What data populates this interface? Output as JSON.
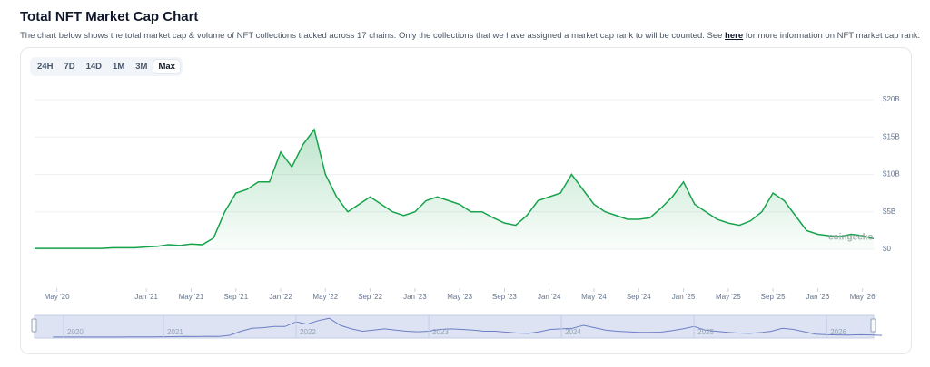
{
  "header": {
    "title": "Total NFT Market Cap Chart",
    "description_before": "The chart below shows the total market cap & volume of NFT collections tracked across 17 chains. Only the collections that we have assigned a market cap rank to will be counted. See",
    "link": "here",
    "description_after": "for more information on NFT market cap rank."
  },
  "range_buttons": [
    {
      "label": "24H"
    },
    {
      "label": "7D"
    },
    {
      "label": "14D"
    },
    {
      "label": "1M"
    },
    {
      "label": "3M"
    },
    {
      "label": "Max",
      "selected": true
    }
  ],
  "watermark": "coingecko",
  "navigator_labels": [
    "2020",
    "2021",
    "2022",
    "2023",
    "2024",
    "2025",
    "2026"
  ],
  "chart_data": {
    "type": "area",
    "color": "#16a34a",
    "navigator_color": "#6b7fc4",
    "grid": true,
    "x": [
      "2020-03",
      "2020-04",
      "2020-05",
      "2020-06",
      "2020-07",
      "2020-08",
      "2020-09",
      "2020-10",
      "2020-11",
      "2020-12",
      "2021-01",
      "2021-02",
      "2021-03",
      "2021-04",
      "2021-05",
      "2021-06",
      "2021-07",
      "2021-08",
      "2021-09",
      "2021-10",
      "2021-11",
      "2021-12",
      "2022-01",
      "2022-02",
      "2022-03",
      "2022-04",
      "2022-05",
      "2022-06",
      "2022-07",
      "2022-08",
      "2022-09",
      "2022-10",
      "2022-11",
      "2022-12",
      "2023-01",
      "2023-02",
      "2023-03",
      "2023-04",
      "2023-05",
      "2023-06",
      "2023-07",
      "2023-08",
      "2023-09",
      "2023-10",
      "2023-11",
      "2023-12",
      "2024-01",
      "2024-02",
      "2024-03",
      "2024-04",
      "2024-05",
      "2024-06",
      "2024-07",
      "2024-08",
      "2024-09",
      "2024-10",
      "2024-11",
      "2024-12",
      "2025-01",
      "2025-02",
      "2025-03",
      "2025-04",
      "2025-05",
      "2025-06",
      "2025-07",
      "2025-08",
      "2025-09",
      "2025-10",
      "2025-11",
      "2025-12",
      "2026-01",
      "2026-02",
      "2026-03",
      "2026-04",
      "2026-05",
      "2026-06"
    ],
    "values": [
      0.1,
      0.1,
      0.1,
      0.1,
      0.1,
      0.1,
      0.1,
      0.2,
      0.2,
      0.2,
      0.3,
      0.4,
      0.6,
      0.5,
      0.7,
      0.6,
      1.5,
      5,
      7.5,
      8,
      9,
      9,
      13,
      11,
      14,
      16,
      10,
      7,
      5,
      6,
      7,
      6,
      5,
      4.5,
      5,
      6.5,
      7,
      6.5,
      6,
      5,
      5,
      4.2,
      3.5,
      3.2,
      4.5,
      6.5,
      7,
      7.5,
      10,
      8,
      6,
      5,
      4.5,
      4,
      4,
      4.2,
      5.5,
      7,
      9,
      6,
      5,
      4,
      3.5,
      3.2,
      3.8,
      5,
      7.5,
      6.5,
      4.5,
      2.5,
      2,
      1.8,
      1.7,
      2,
      1.8,
      1.4
    ],
    "xlim": [
      "2020-03",
      "2026-06"
    ],
    "xticks": [
      {
        "value": "2020-05",
        "label": "May '20"
      },
      {
        "value": "2021-01",
        "label": "Jan '21"
      },
      {
        "value": "2021-05",
        "label": "May '21"
      },
      {
        "value": "2021-09",
        "label": "Sep '21"
      },
      {
        "value": "2022-01",
        "label": "Jan '22"
      },
      {
        "value": "2022-05",
        "label": "May '22"
      },
      {
        "value": "2022-09",
        "label": "Sep '22"
      },
      {
        "value": "2023-01",
        "label": "Jan '23"
      },
      {
        "value": "2023-05",
        "label": "May '23"
      },
      {
        "value": "2023-09",
        "label": "Sep '23"
      },
      {
        "value": "2024-01",
        "label": "Jan '24"
      },
      {
        "value": "2024-05",
        "label": "May '24"
      },
      {
        "value": "2024-09",
        "label": "Sep '24"
      },
      {
        "value": "2025-01",
        "label": "Jan '25"
      },
      {
        "value": "2025-05",
        "label": "May '25"
      },
      {
        "value": "2025-09",
        "label": "Sep '25"
      },
      {
        "value": "2026-01",
        "label": "Jan '26"
      },
      {
        "value": "2026-05",
        "label": "May '26"
      }
    ],
    "ylim": [
      0,
      20
    ],
    "yticks": [
      {
        "value": 0,
        "label": "$0"
      },
      {
        "value": 5,
        "label": "$5B"
      },
      {
        "value": 10,
        "label": "$10B"
      },
      {
        "value": 15,
        "label": "$15B"
      },
      {
        "value": 20,
        "label": "$20B"
      }
    ]
  }
}
